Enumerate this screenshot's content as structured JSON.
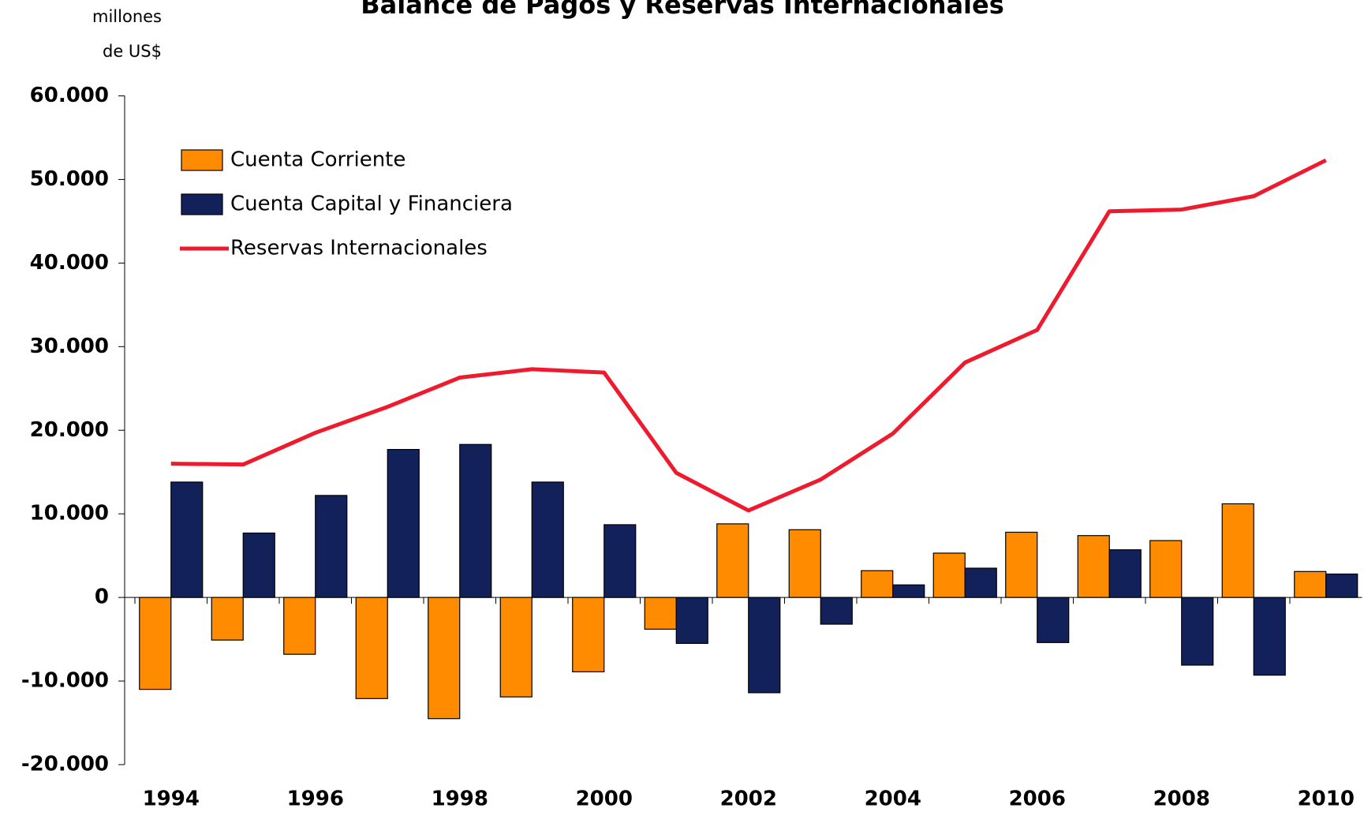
{
  "chart_data": {
    "type": "bar_line",
    "title": "Balance de Pagos y Reservas Internacionales",
    "y_label": [
      "millones",
      "de US$"
    ],
    "categories": [
      "1994",
      null,
      "1996",
      null,
      "1998",
      null,
      "2000",
      null,
      "2002",
      null,
      "2004",
      null,
      "2006",
      null,
      "2008",
      null,
      "2010"
    ],
    "series": [
      {
        "name": "Cuenta Corriente",
        "type": "bar",
        "color": "#ff8c00",
        "values": [
          -11000,
          -5100,
          -6800,
          -12100,
          -14500,
          -11900,
          -8900,
          -3800,
          8800,
          8100,
          3200,
          5300,
          7800,
          7400,
          6800,
          11200,
          3100
        ]
      },
      {
        "name": "Cuenta Capital y Financiera",
        "type": "bar",
        "color": "#13215a",
        "values": [
          13800,
          7700,
          12200,
          17700,
          18300,
          13800,
          8700,
          -5500,
          -11400,
          -3200,
          1500,
          3500,
          -5400,
          5700,
          -8100,
          -9300,
          2800
        ]
      },
      {
        "name": "Reservas Internacionales",
        "type": "line",
        "color": "#ee1b2e",
        "values": [
          16000,
          15900,
          19700,
          22800,
          26300,
          27300,
          26900,
          14900,
          10400,
          14100,
          19600,
          28100,
          32000,
          46200,
          46400,
          48000,
          52300
        ]
      }
    ],
    "ylim": [
      -20000,
      60000
    ],
    "yticks": [
      {
        "value": -20000,
        "label": "-20.000"
      },
      {
        "value": -10000,
        "label": "-10.000"
      },
      0,
      {
        "value": 10000,
        "label": "10.000"
      },
      {
        "value": 20000,
        "label": "20.000"
      },
      {
        "value": 30000,
        "label": "30.000"
      },
      {
        "value": 40000,
        "label": "40.000"
      },
      {
        "value": 50000,
        "label": "50.000"
      },
      {
        "value": 60000,
        "label": "60.000"
      }
    ]
  }
}
